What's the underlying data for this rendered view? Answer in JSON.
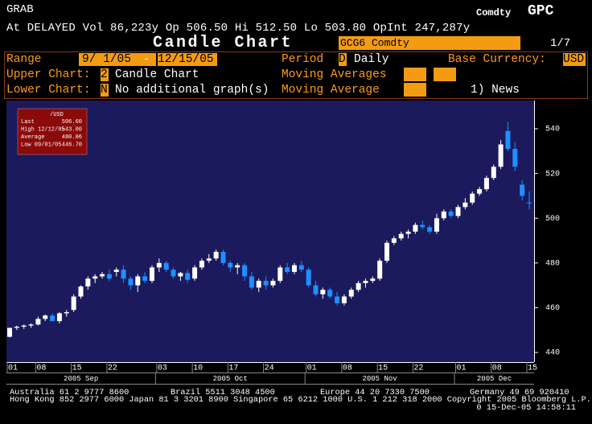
{
  "header": {
    "title": "GRAB",
    "market": "Comdty",
    "ticker": "GPC",
    "quote": "At DELAYED Vol 86,223y Op 506.50 Hi 512.50 Lo 503.80 OpInt 247,287y",
    "screen_title": "Candle Chart",
    "security": "GCG6 Comdty",
    "page": "1/7"
  },
  "form": {
    "range_label": "Range",
    "range_start": "9/ 1/05",
    "range_sep": "-",
    "range_end": "12/15/05",
    "period_label": "Period",
    "period_code": "D",
    "period_value": "Daily",
    "currency_label": "Base Currency:",
    "currency_value": "USD",
    "upper_label": "Upper Chart:",
    "upper_code": "2",
    "upper_value": "Candle Chart",
    "ma_label": "Moving Averages",
    "lower_label": "Lower Chart:",
    "lower_code": "N",
    "lower_value": "No additional graph(s)",
    "ma2_label": "Moving Average",
    "news": "1) News"
  },
  "info_box": {
    "title": "/USD",
    "rows": [
      {
        "label": "Last",
        "value": "506.60"
      },
      {
        "label": "High  12/12/05",
        "value": "543.00"
      },
      {
        "label": "Average",
        "value": "480.06"
      },
      {
        "label": "Low  09/01/05",
        "value": "446.70"
      }
    ]
  },
  "footer": {
    "line1": [
      "Australia 61 2 9777 8600",
      "Brazil 5511 3048 4500",
      "Europe 44 20 7330 7500",
      "Germany 49 69 920410"
    ],
    "line2": "Hong Kong 852 2977 6000 Japan 81 3 3201 8900 Singapore 65 6212 1000 U.S. 1 212 318 2000 Copyright 2005 Bloomberg L.P.",
    "line3": "0 15-Dec-05 14:58:11"
  },
  "chart_data": {
    "type": "candlestick",
    "categories": [
      "01",
      null,
      null,
      null,
      "08",
      null,
      null,
      null,
      null,
      "15",
      null,
      null,
      null,
      null,
      "22",
      null,
      null,
      null,
      null,
      null,
      null,
      "03",
      null,
      null,
      null,
      null,
      "10",
      null,
      null,
      null,
      null,
      "17",
      null,
      null,
      null,
      null,
      "24",
      null,
      null,
      null,
      null,
      null,
      "01",
      null,
      null,
      null,
      null,
      "08",
      null,
      null,
      null,
      null,
      "15",
      null,
      null,
      null,
      null,
      "22",
      null,
      null,
      null,
      null,
      null,
      "01",
      null,
      null,
      null,
      null,
      "08",
      null,
      null,
      null,
      null,
      "15"
    ],
    "months": [
      "2005 Sep",
      "2005 Oct",
      "2005 Nov",
      "2005 Dec"
    ],
    "open": [
      447,
      451,
      451.5,
      452,
      452.5,
      455,
      456.5,
      454,
      457.5,
      459,
      465,
      469.5,
      473,
      474,
      475,
      476,
      477,
      473,
      470,
      474,
      472,
      478,
      480,
      477,
      474,
      475.5,
      473,
      478,
      481,
      482,
      485,
      480,
      478,
      479,
      474,
      469,
      472,
      470,
      472,
      478,
      476,
      479,
      477,
      470,
      466,
      468,
      465,
      462,
      465,
      468,
      471,
      472,
      473,
      481,
      489,
      491,
      493,
      494,
      497,
      496,
      494,
      500,
      503,
      501,
      505,
      507,
      511,
      513,
      518,
      523,
      539,
      531,
      515,
      507
    ],
    "high": [
      451,
      452,
      452.5,
      453,
      456,
      457,
      457.5,
      458,
      459,
      466,
      470,
      474,
      475,
      476,
      477,
      478,
      479,
      474,
      475,
      476,
      479,
      482,
      481,
      478,
      476,
      477,
      479,
      482,
      484,
      486,
      486,
      481,
      480,
      480,
      476,
      473,
      474,
      473,
      479,
      480,
      480,
      481,
      478,
      472,
      469,
      469,
      467,
      466,
      469,
      472,
      473,
      474,
      482,
      490,
      492,
      494,
      495,
      498,
      499,
      497,
      502,
      504,
      504,
      506,
      509,
      512,
      514,
      519,
      524,
      535,
      543,
      534,
      517,
      512
    ],
    "low": [
      446.7,
      450,
      450.5,
      451,
      452,
      454,
      454,
      453,
      456,
      458,
      464,
      468,
      471,
      473,
      472,
      474,
      471,
      468,
      467,
      471,
      471,
      476,
      476,
      473,
      472,
      471,
      472,
      477,
      480,
      481,
      479,
      476,
      475,
      472,
      468,
      467,
      468,
      469,
      471,
      475,
      475,
      476,
      469,
      465,
      464,
      464,
      461,
      461,
      464,
      467,
      469,
      471,
      472,
      480,
      488,
      490,
      491,
      493,
      495,
      493,
      493,
      499,
      500,
      500,
      504,
      506,
      510,
      512,
      517,
      522,
      530,
      521,
      508,
      504
    ],
    "close": [
      451,
      451.5,
      452,
      452.5,
      455,
      456.5,
      454,
      457.5,
      458,
      465,
      469.5,
      473,
      474,
      475,
      473,
      477,
      473,
      470,
      474,
      472,
      478,
      480,
      477,
      474,
      475.5,
      472.5,
      478,
      481,
      482,
      485,
      480,
      478,
      479,
      474,
      469,
      472,
      470,
      472,
      478,
      476,
      479,
      477,
      470,
      466,
      468,
      465,
      462,
      465,
      468,
      471,
      472,
      473,
      481,
      489,
      491,
      493,
      494,
      497,
      496,
      494,
      500,
      503,
      501,
      505,
      507,
      511,
      513,
      518,
      523,
      533,
      531,
      523,
      510,
      506.6
    ],
    "up_color": "#ffffff",
    "down_color": "#1e8fff",
    "ylim": [
      435.7,
      552.6
    ],
    "yticks": [
      440,
      460,
      480,
      500,
      520,
      540
    ]
  }
}
